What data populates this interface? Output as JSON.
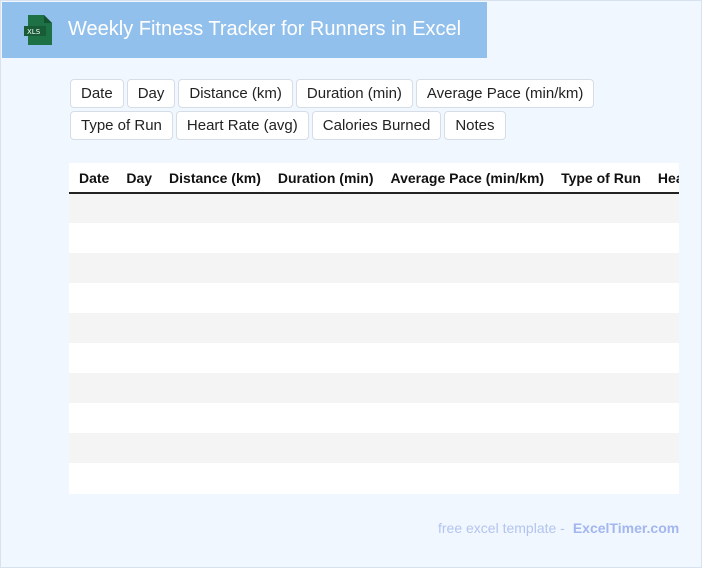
{
  "header": {
    "title": "Weekly Fitness Tracker for Runners in Excel",
    "logo_text": "XLS",
    "brand_color": "#92c0ec"
  },
  "chips": [
    "Date",
    "Day",
    "Distance (km)",
    "Duration (min)",
    "Average Pace (min/km)",
    "Type of Run",
    "Heart Rate (avg)",
    "Calories Burned",
    "Notes"
  ],
  "table": {
    "columns": [
      "Date",
      "Day",
      "Distance (km)",
      "Duration (min)",
      "Average Pace (min/km)",
      "Type of Run",
      "Heart Rate (avg)",
      "Calories Burned",
      "Notes"
    ],
    "row_count": 10
  },
  "footer": {
    "text": "free excel template -",
    "brand": "ExcelTimer.com"
  }
}
